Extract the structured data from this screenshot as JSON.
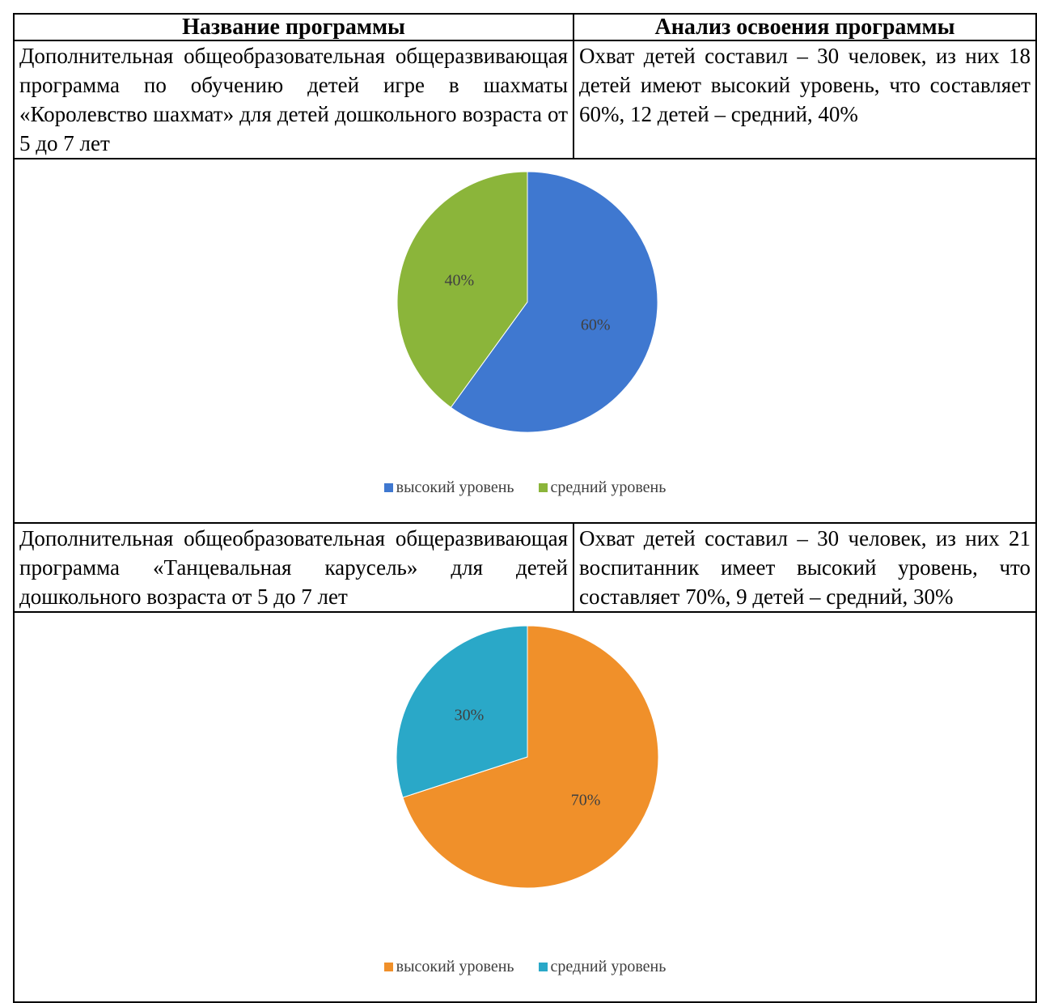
{
  "table": {
    "headers": [
      "Название программы",
      "Анализ освоения программы"
    ],
    "rows": [
      {
        "program": "Дополнительная общеобразовательная общеразвивающая программа по обучению детей игре в шахматы «Королевство шахмат» для детей дошкольного возраста от 5 до 7 лет",
        "analysis": "Охват детей составил – 30 человек, из них 18 детей имеют высокий уровень, что составляет 60%, 12 детей – средний, 40%"
      },
      {
        "program": "Дополнительная общеобразовательная общеразвивающая программа «Танцевальная карусель» для детей дошкольного возраста от 5 до 7 лет",
        "analysis": "Охват детей составил – 30 человек, из них 21 воспитанник имеет высокий уровень, что составляет 70%, 9 детей – средний, 30%"
      }
    ]
  },
  "chart_data": [
    {
      "type": "pie",
      "slices": [
        {
          "name": "высокий уровень",
          "value": 60,
          "label": "60%",
          "color": "#3f78d0"
        },
        {
          "name": "средний уровень",
          "value": 40,
          "label": "40%",
          "color": "#8bb53a"
        }
      ],
      "legend_position": "bottom"
    },
    {
      "type": "pie",
      "slices": [
        {
          "name": "высокий уровень",
          "value": 70,
          "label": "70%",
          "color": "#f0902a"
        },
        {
          "name": "средний уровень",
          "value": 30,
          "label": "30%",
          "color": "#2aa8c8"
        }
      ],
      "legend_position": "bottom"
    }
  ]
}
